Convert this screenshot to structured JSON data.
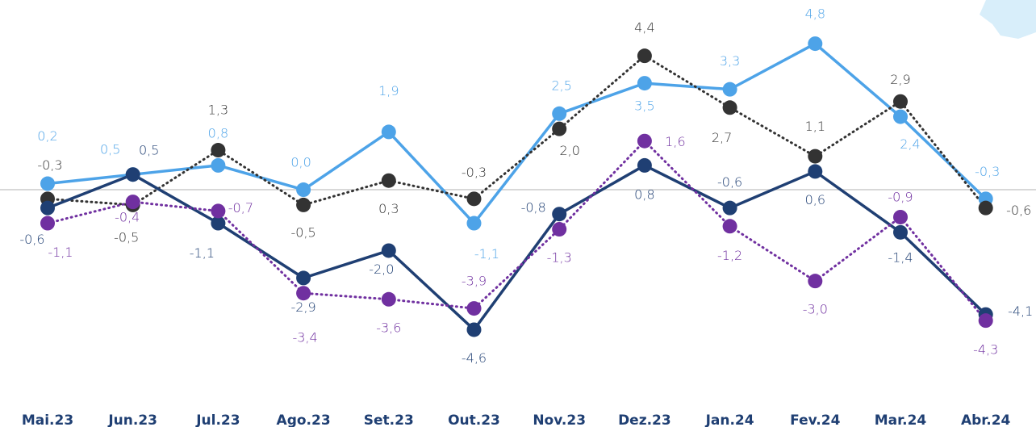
{
  "chart_data": {
    "type": "line",
    "categories": [
      "Mai.23",
      "Jun.23",
      "Jul.23",
      "Ago.23",
      "Set.23",
      "Out.23",
      "Nov.23",
      "Dez.23",
      "Jan.24",
      "Fev.24",
      "Mar.24",
      "Abr.24"
    ],
    "ylim": [
      -5.5,
      6.2
    ],
    "series": [
      {
        "color": "#4da3e8",
        "dash": false,
        "values": [
          0.2,
          0.5,
          0.8,
          0.0,
          1.9,
          -1.1,
          2.5,
          3.5,
          3.3,
          4.8,
          2.4,
          -0.3
        ],
        "value_labels": [
          "0,2",
          "0,5",
          "0,8",
          "0,0",
          "1,9",
          "-1,1",
          "2,5",
          "3,5",
          "3,3",
          "4,8",
          "2,4",
          "-0,3"
        ]
      },
      {
        "color": "#333333",
        "dash": true,
        "values": [
          -0.3,
          -0.5,
          1.3,
          -0.5,
          0.3,
          -0.3,
          2.0,
          4.4,
          2.7,
          1.1,
          2.9,
          -0.6
        ],
        "value_labels": [
          "-0,3",
          "-0,5",
          "1,3",
          "-0,5",
          "0,3",
          "-0,3",
          "2,0",
          "4,4",
          "2,7",
          "1,1",
          "2,9",
          "-0,6"
        ]
      },
      {
        "color": "#1f3f73",
        "dash": false,
        "values": [
          -0.6,
          0.5,
          -1.1,
          -2.9,
          -2.0,
          -4.6,
          -0.8,
          0.8,
          -0.6,
          0.6,
          -1.4,
          -4.1
        ],
        "value_labels": [
          "-0,6",
          "0,5",
          "-1,1",
          "-2,9",
          "-2,0",
          "-4,6",
          "-0,8",
          "0,8",
          "-0,6",
          "0,6",
          "-1,4",
          "-4,1"
        ]
      },
      {
        "color": "#7030a0",
        "dash": true,
        "values": [
          -1.1,
          -0.4,
          -0.7,
          -3.4,
          -3.6,
          -3.9,
          -1.3,
          1.6,
          -1.2,
          -3.0,
          -0.9,
          -4.3
        ],
        "value_labels": [
          "-1,1",
          "-0,4",
          "-0,7",
          "-3,4",
          "-3,6",
          "-3,9",
          "-1,3",
          "1,6",
          "-1,2",
          "-3,0",
          "-0,9",
          "-4,3"
        ]
      }
    ]
  }
}
